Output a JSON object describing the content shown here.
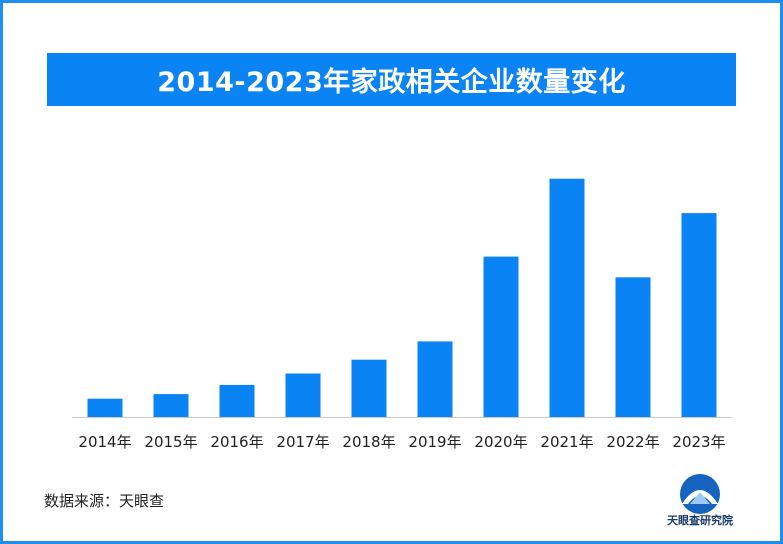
{
  "title": "2014-2023年家政相关企业数量变化",
  "source_label": "数据来源：天眼查",
  "logo_text": "天眼查研究院",
  "colors": {
    "bar": "#0a84f5",
    "frame": "#1e8ff2",
    "axis": "#cccccc"
  },
  "chart_data": {
    "type": "bar",
    "title": "2014-2023年家政相关企业数量变化",
    "categories": [
      "2014年",
      "2015年",
      "2016年",
      "2017年",
      "2018年",
      "2019年",
      "2020年",
      "2021年",
      "2022年",
      "2023年"
    ],
    "values": [
      8,
      10,
      14,
      19,
      25,
      33,
      70,
      104,
      61,
      89
    ],
    "xlabel": "",
    "ylabel": "",
    "ylim": [
      0,
      110
    ],
    "grid": false,
    "legend": "none"
  }
}
